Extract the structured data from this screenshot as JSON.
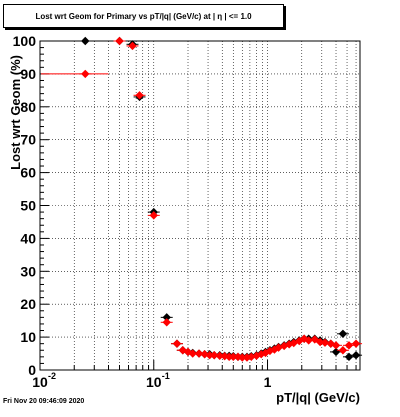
{
  "chart_data": {
    "type": "scatter",
    "title": "Lost wrt Geom for Primary vs pT/|q| (GeV/c) at |  η | <= 1.0",
    "xlabel": "pT/|q| (GeV/c)",
    "ylabel": "Lost wrt Geom (%)",
    "xscale": "log",
    "xlim": [
      0.01,
      6.5
    ],
    "ylim": [
      0,
      100
    ],
    "grid": true,
    "xticks": [
      {
        "value": 0.01,
        "label": "10",
        "sup": "-2"
      },
      {
        "value": 0.1,
        "label": "10",
        "sup": "-1"
      },
      {
        "value": 1,
        "label": "1",
        "sup": ""
      }
    ],
    "yticks": [
      "0",
      "10",
      "20",
      "30",
      "40",
      "50",
      "60",
      "70",
      "80",
      "90",
      "100"
    ],
    "series": [
      {
        "color": "#000000",
        "points": [
          [
            0.025,
            100
          ],
          [
            0.05,
            100
          ],
          [
            0.065,
            99
          ],
          [
            0.075,
            83
          ],
          [
            0.1,
            48
          ],
          [
            0.13,
            16
          ],
          [
            0.16,
            8
          ],
          [
            0.18,
            6
          ],
          [
            0.2,
            5.5
          ],
          [
            0.22,
            5.2
          ],
          [
            0.25,
            5
          ],
          [
            0.28,
            4.8
          ],
          [
            0.31,
            4.8
          ],
          [
            0.34,
            4.5
          ],
          [
            0.38,
            4.5
          ],
          [
            0.42,
            4.3
          ],
          [
            0.46,
            4.3
          ],
          [
            0.5,
            4.2
          ],
          [
            0.55,
            4
          ],
          [
            0.6,
            4
          ],
          [
            0.66,
            4
          ],
          [
            0.72,
            4.2
          ],
          [
            0.8,
            4.5
          ],
          [
            0.88,
            5
          ],
          [
            0.96,
            5.5
          ],
          [
            1.05,
            6
          ],
          [
            1.15,
            6.5
          ],
          [
            1.25,
            7
          ],
          [
            1.4,
            7.5
          ],
          [
            1.55,
            8
          ],
          [
            1.7,
            8.5
          ],
          [
            1.9,
            9
          ],
          [
            2.1,
            9.5
          ],
          [
            2.3,
            9.5
          ],
          [
            2.6,
            9.5
          ],
          [
            2.9,
            9
          ],
          [
            3.2,
            8.5
          ],
          [
            3.6,
            8
          ],
          [
            4.0,
            5.5
          ],
          [
            4.6,
            11
          ],
          [
            5.2,
            4
          ],
          [
            6.0,
            4.5
          ]
        ]
      },
      {
        "color": "#ff0000",
        "points": [
          [
            0.025,
            90
          ],
          [
            0.05,
            100
          ],
          [
            0.065,
            98.5
          ],
          [
            0.075,
            83.5
          ],
          [
            0.1,
            47
          ],
          [
            0.13,
            14.5
          ],
          [
            0.16,
            8
          ],
          [
            0.18,
            6
          ],
          [
            0.2,
            5.5
          ],
          [
            0.22,
            5
          ],
          [
            0.25,
            5
          ],
          [
            0.28,
            4.8
          ],
          [
            0.31,
            4.5
          ],
          [
            0.34,
            4.5
          ],
          [
            0.38,
            4.3
          ],
          [
            0.42,
            4.2
          ],
          [
            0.46,
            4
          ],
          [
            0.5,
            4
          ],
          [
            0.55,
            4
          ],
          [
            0.6,
            3.8
          ],
          [
            0.66,
            3.8
          ],
          [
            0.72,
            4
          ],
          [
            0.8,
            4.3
          ],
          [
            0.88,
            4.8
          ],
          [
            0.96,
            5.2
          ],
          [
            1.05,
            5.8
          ],
          [
            1.15,
            6.2
          ],
          [
            1.25,
            6.8
          ],
          [
            1.4,
            7.3
          ],
          [
            1.55,
            7.8
          ],
          [
            1.7,
            8.2
          ],
          [
            1.9,
            8.8
          ],
          [
            2.1,
            9.5
          ],
          [
            2.3,
            9
          ],
          [
            2.6,
            9.3
          ],
          [
            2.9,
            8.5
          ],
          [
            3.2,
            8.3
          ],
          [
            3.6,
            8
          ],
          [
            4.0,
            7.5
          ],
          [
            4.6,
            6
          ],
          [
            5.2,
            7.5
          ],
          [
            6.0,
            8
          ]
        ]
      }
    ]
  },
  "footer": "Fri Nov 20 09:46:09 2020"
}
